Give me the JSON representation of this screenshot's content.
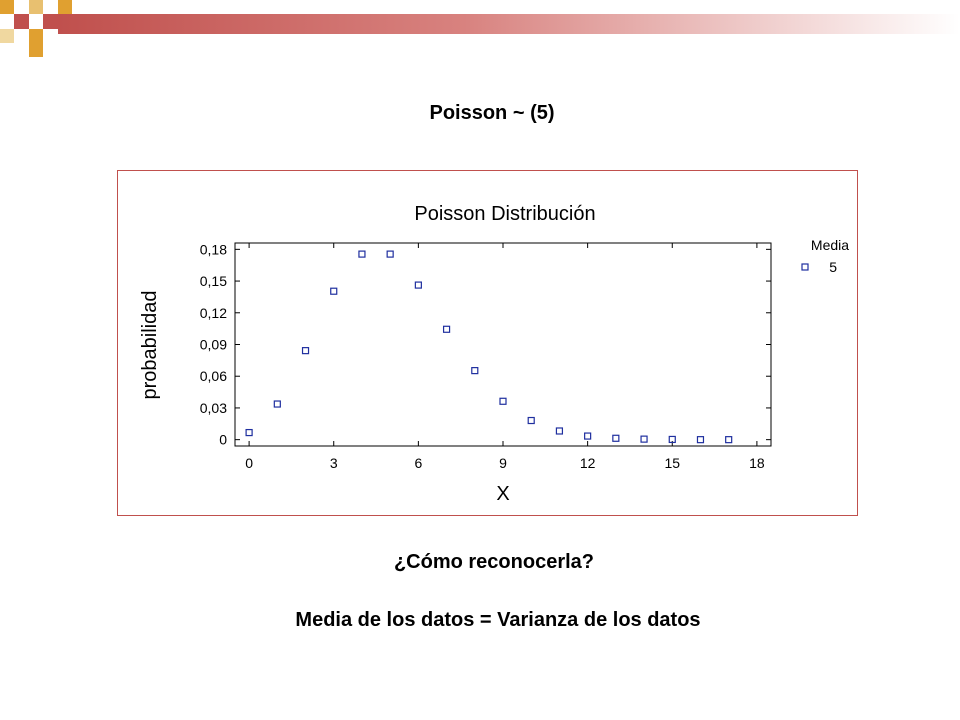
{
  "slide": {
    "title": "Poisson ~ (5)",
    "question": "¿Cómo reconocerla?",
    "statement": "Media de los datos = Varianza de los datos"
  },
  "colors": {
    "accent": "#c0504d",
    "accent_light": "#e9b8b6",
    "gold": "#e0a030",
    "marker": "#1f2f9f"
  },
  "chart_data": {
    "type": "scatter",
    "title": "Poisson Distribución",
    "xlabel": "X",
    "ylabel": "probabilidad",
    "xlim": [
      -0.5,
      18.5
    ],
    "ylim": [
      -0.006,
      0.186
    ],
    "x_ticks": [
      0,
      3,
      6,
      9,
      12,
      15,
      18
    ],
    "y_ticks": [
      0,
      0.03,
      0.06,
      0.09,
      0.12,
      0.15,
      0.18
    ],
    "x_tick_labels": [
      "0",
      "3",
      "6",
      "9",
      "12",
      "15",
      "18"
    ],
    "y_tick_labels": [
      "0",
      "0,03",
      "0,06",
      "0,09",
      "0,12",
      "0,15",
      "0,18"
    ],
    "legend": {
      "title": "Media",
      "placement": "right"
    },
    "series": [
      {
        "name": "5",
        "x": [
          0,
          1,
          2,
          3,
          4,
          5,
          6,
          7,
          8,
          9,
          10,
          11,
          12,
          13,
          14,
          15,
          16,
          17
        ],
        "y": [
          0.0067,
          0.0337,
          0.0842,
          0.1404,
          0.1755,
          0.1755,
          0.1462,
          0.1044,
          0.0653,
          0.0363,
          0.0181,
          0.0082,
          0.0034,
          0.0013,
          0.0005,
          0.0002,
          0.0,
          0.0
        ]
      }
    ]
  }
}
